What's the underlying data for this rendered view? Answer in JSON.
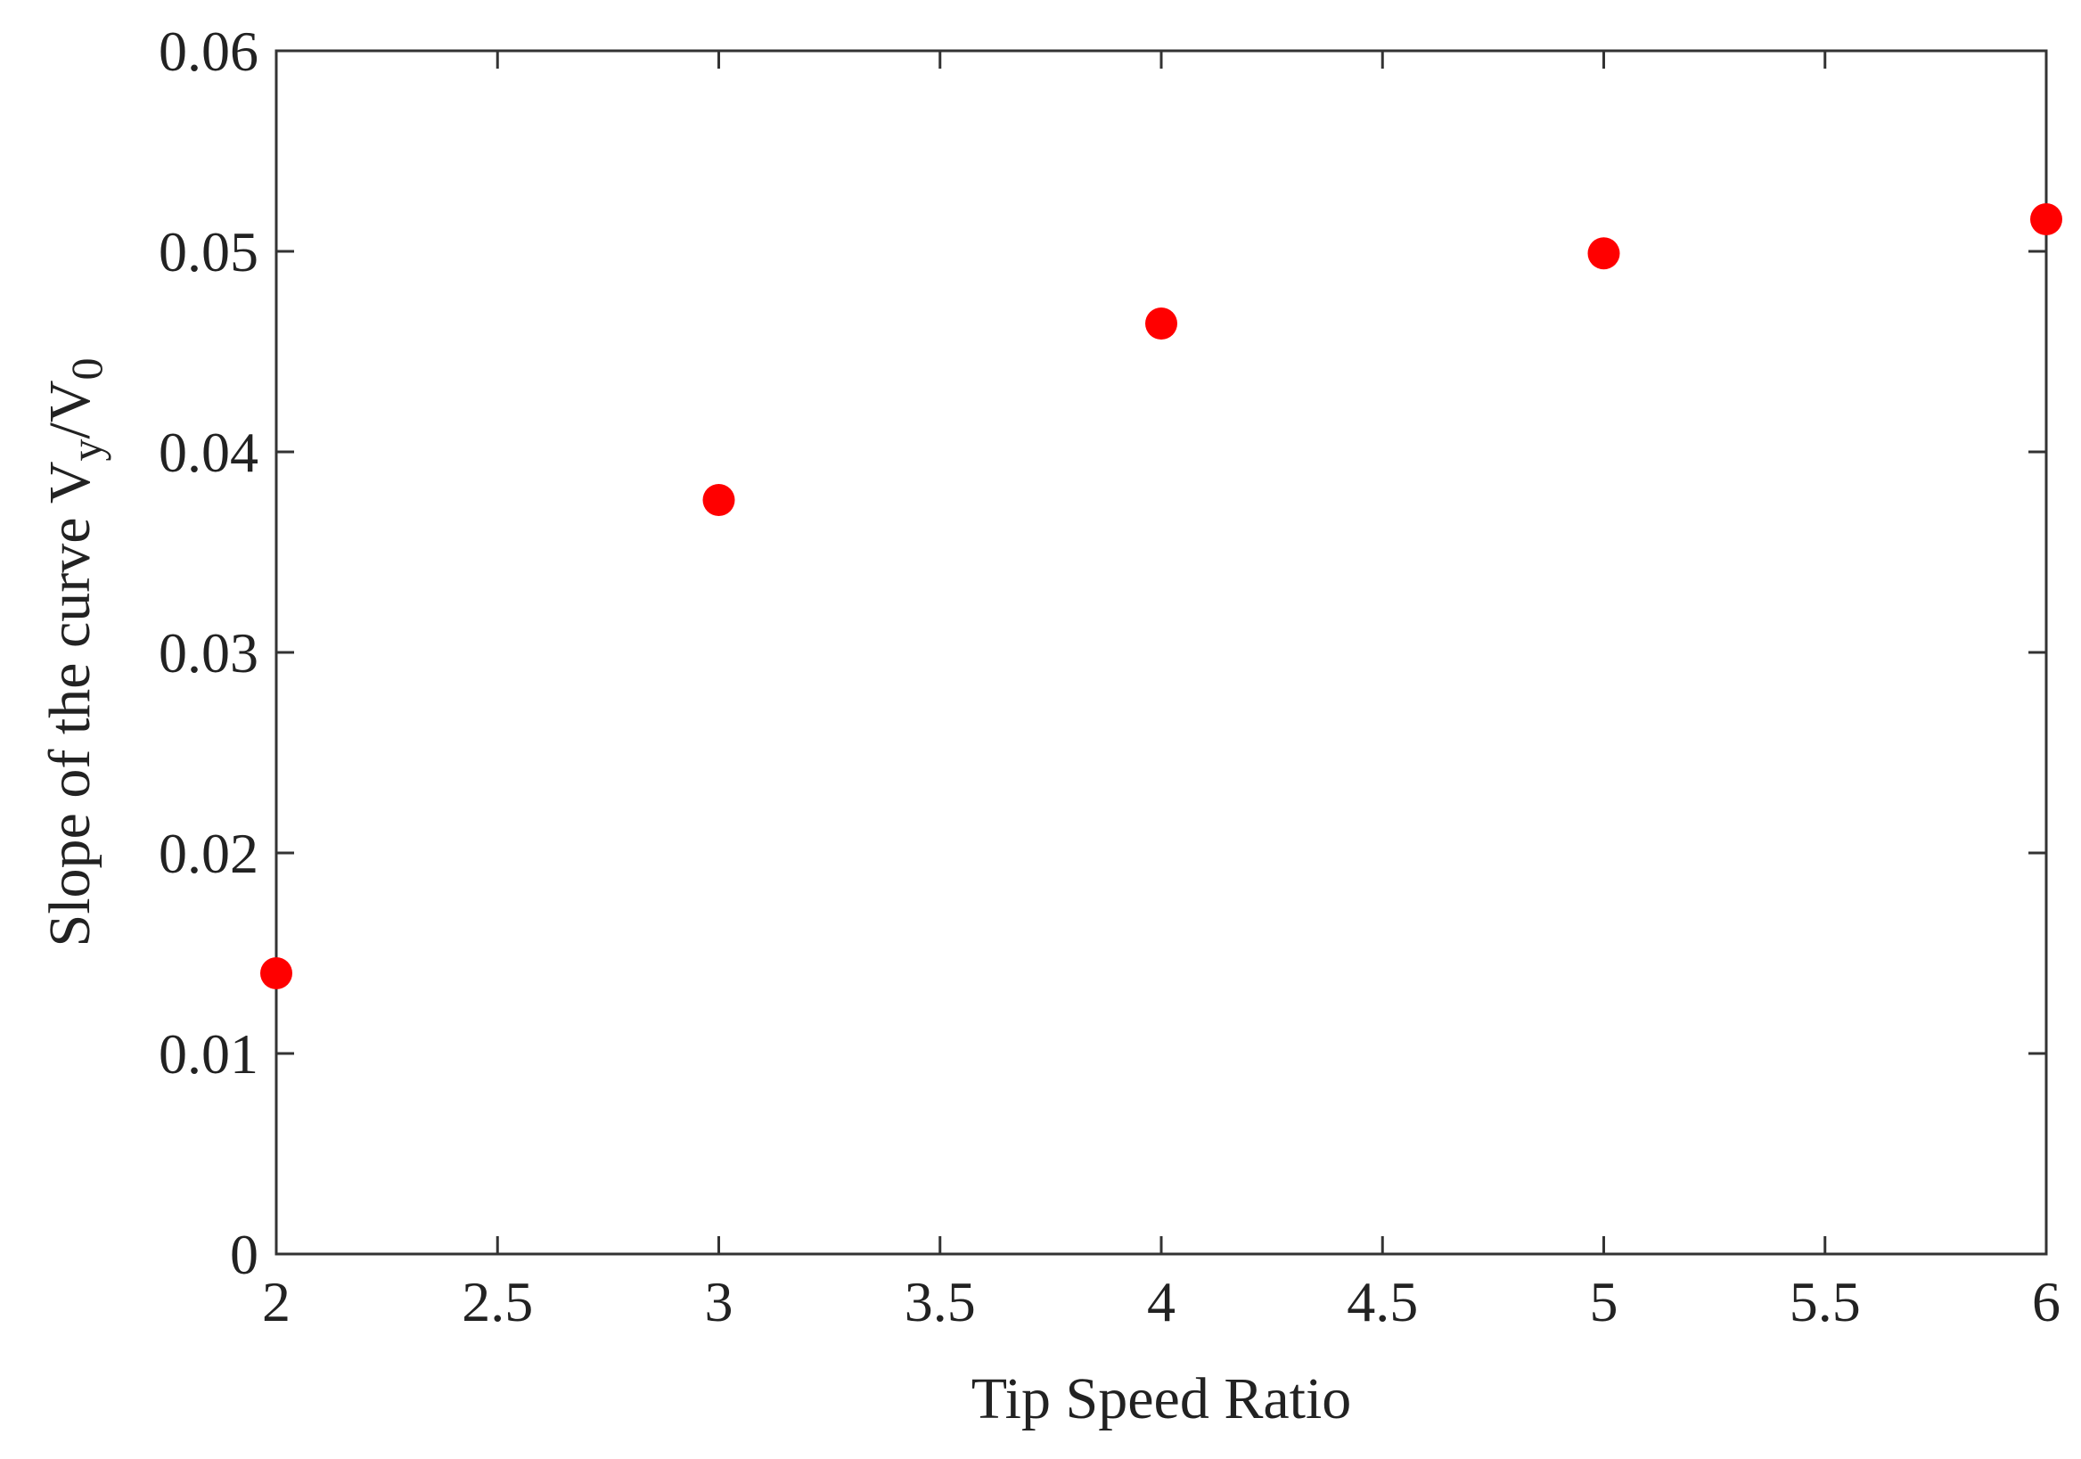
{
  "chart_data": {
    "type": "scatter",
    "title": "",
    "xlabel": "Tip Speed Ratio",
    "ylabel": {
      "prefix": "Slope of  the curve V",
      "sub1": "y",
      "middle": "/V",
      "sub2": "0"
    },
    "xlim": [
      2,
      6
    ],
    "ylim": [
      0,
      0.06
    ],
    "xticks": [
      2,
      2.5,
      3,
      3.5,
      4,
      4.5,
      5,
      5.5,
      6
    ],
    "xtick_labels": [
      "2",
      "2.5",
      "3",
      "3.5",
      "4",
      "4.5",
      "5",
      "5.5",
      "6"
    ],
    "yticks": [
      0,
      0.01,
      0.02,
      0.03,
      0.04,
      0.05,
      0.06
    ],
    "ytick_labels": [
      "0",
      "0.01",
      "0.02",
      "0.03",
      "0.04",
      "0.05",
      "0.06"
    ],
    "grid": false,
    "series": [
      {
        "color": "#ff0000",
        "marker": "circle",
        "x": [
          2,
          3,
          4,
          5,
          6
        ],
        "y": [
          0.014,
          0.0376,
          0.0464,
          0.0499,
          0.0516
        ]
      }
    ]
  }
}
